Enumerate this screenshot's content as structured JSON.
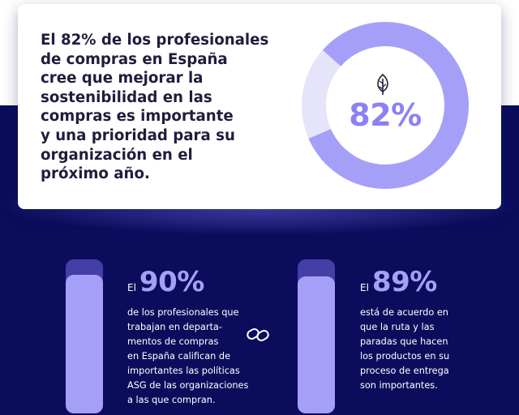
{
  "headline": {
    "lines": [
      "El 82% de los profesionales",
      "de compras en España",
      "cree que mejorar la",
      "sostenibilidad en las",
      "compras es importante",
      "y una prioridad para su",
      "organización en el",
      "próximo año."
    ]
  },
  "chart_data": {
    "type": "pie",
    "donut": true,
    "labels": [
      "",
      ""
    ],
    "values": [
      82,
      18
    ],
    "center_label": "82%",
    "colors": [
      "#a69ff8",
      "#e6e4fb"
    ]
  },
  "stats": [
    {
      "prefix": "El",
      "value": "90%",
      "percent": 90,
      "lines": [
        "de los profesionales que",
        "trabajan en departa-",
        "mentos de compras",
        "en España califican de",
        "importantes las políticas",
        "ASG de las organizaciones",
        "a las que compran."
      ]
    },
    {
      "prefix": "El",
      "value": "89%",
      "percent": 89,
      "lines": [
        "está de acuerdo en",
        "que la ruta y las",
        "paradas que hacen",
        "los productos en su",
        "proceso de entrega",
        "son importantes."
      ]
    }
  ],
  "icons": {
    "donut_center": "leaf-icon",
    "divider": "link-icon"
  },
  "colors": {
    "navy": "#0b0d5c",
    "accent": "#a69ff8",
    "accent_light": "#e6e4fb",
    "text_dark": "#1e1e3c"
  }
}
